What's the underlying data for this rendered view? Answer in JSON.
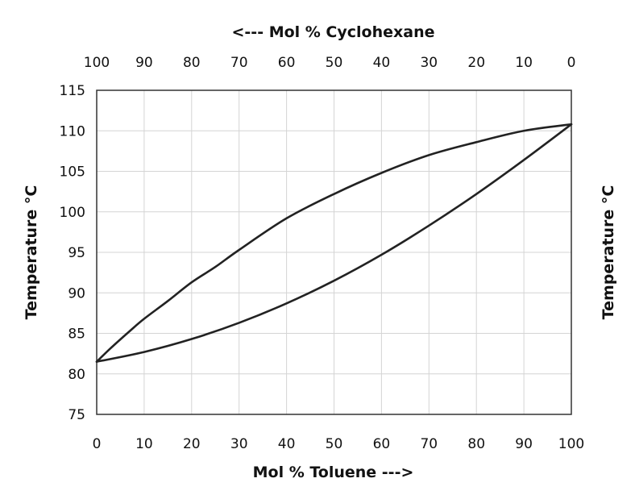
{
  "chart_data": {
    "type": "line",
    "title": "",
    "xlabel": "Mol % Toluene --->",
    "x2label": "<--- Mol % Cyclohexane",
    "ylabel": "Temperature °C",
    "y2label": "Temperature °C",
    "xlim": [
      0,
      100
    ],
    "ylim": [
      75,
      115
    ],
    "x_ticks": [
      0,
      10,
      20,
      30,
      40,
      50,
      60,
      70,
      80,
      90,
      100
    ],
    "x2_ticks": [
      100,
      90,
      80,
      70,
      60,
      50,
      40,
      30,
      20,
      10,
      0
    ],
    "y_ticks": [
      75,
      80,
      85,
      90,
      95,
      100,
      105,
      110,
      115
    ],
    "grid": true,
    "series": [
      {
        "x": [
          0,
          3,
          7,
          10,
          15,
          20,
          25,
          30,
          40,
          50,
          60,
          70,
          80,
          90,
          100
        ],
        "y": [
          81.5,
          83.2,
          85.3,
          86.8,
          89.0,
          91.3,
          93.2,
          95.3,
          99.2,
          102.2,
          104.8,
          107.0,
          108.6,
          110.0,
          110.8
        ]
      },
      {
        "x": [
          0,
          10,
          20,
          30,
          40,
          50,
          60,
          70,
          80,
          90,
          100
        ],
        "y": [
          81.5,
          82.7,
          84.3,
          86.3,
          88.7,
          91.5,
          94.7,
          98.3,
          102.2,
          106.4,
          110.8
        ]
      }
    ]
  }
}
